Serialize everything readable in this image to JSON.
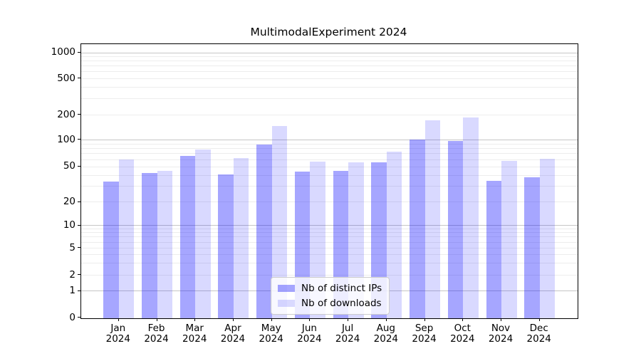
{
  "title": "MultimodalExperiment 2024",
  "chart_data": {
    "type": "bar",
    "title": "MultimodalExperiment 2024",
    "categories": [
      "Jan 2024",
      "Feb 2024",
      "Mar 2024",
      "Apr 2024",
      "May 2024",
      "Jun 2024",
      "Jul 2024",
      "Aug 2024",
      "Sep 2024",
      "Oct 2024",
      "Nov 2024",
      "Dec 2024"
    ],
    "series": [
      {
        "name": "Nb of distinct IPs",
        "color": "#0000ff59",
        "values": [
          34,
          43,
          67,
          41,
          90,
          44,
          45,
          56,
          103,
          98,
          35,
          38
        ]
      },
      {
        "name": "Nb of downloads",
        "color": "#0000ff26",
        "values": [
          61,
          45,
          78,
          63,
          148,
          57,
          56,
          75,
          173,
          187,
          59,
          62
        ]
      }
    ],
    "y_axis": {
      "scale": "symlog",
      "ticks": [
        0,
        1,
        2,
        5,
        10,
        20,
        50,
        100,
        200,
        500,
        1000
      ],
      "range": [
        0,
        1300
      ]
    },
    "x_axis": {
      "tick_year_line": "2024"
    },
    "legend": {
      "position": "lower center",
      "entries": [
        "Nb of distinct IPs",
        "Nb of downloads"
      ]
    },
    "grid": {
      "horizontal": true,
      "major_color": "#c6c6c6",
      "minor_color": "#ededed"
    }
  },
  "colors": {
    "background": "#ffffff",
    "spine": "#000000",
    "text": "#000000"
  }
}
